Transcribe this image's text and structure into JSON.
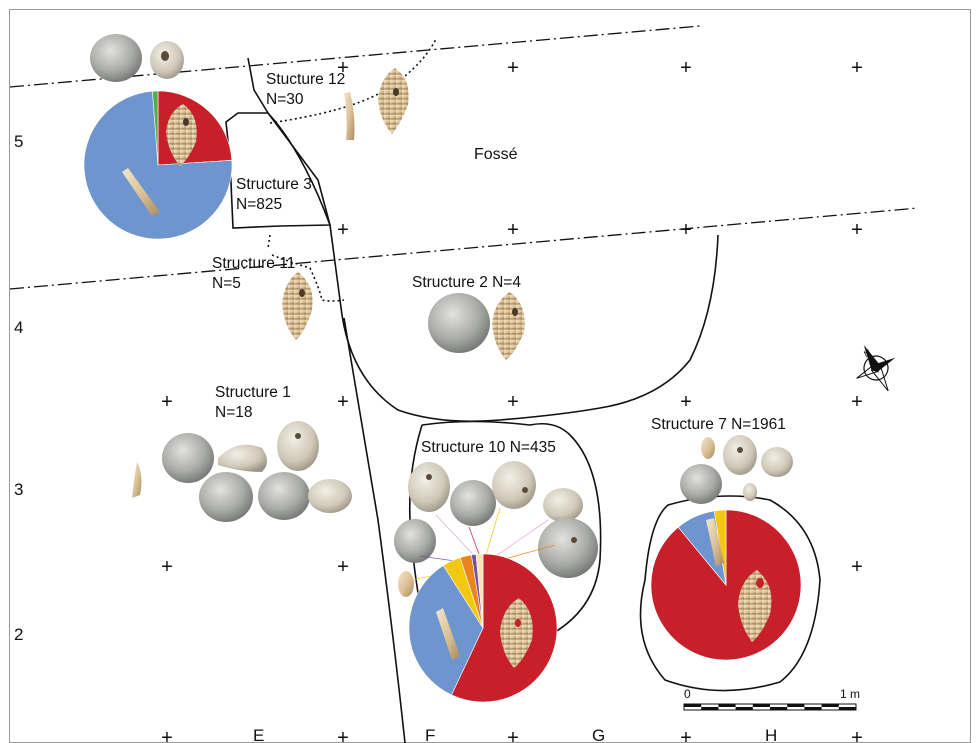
{
  "rows": [
    {
      "label": "5"
    },
    {
      "label": "4"
    },
    {
      "label": "3"
    },
    {
      "label": "2"
    }
  ],
  "columns": [
    {
      "label": "E"
    },
    {
      "label": "F"
    },
    {
      "label": "G"
    },
    {
      "label": "H"
    }
  ],
  "grid_marker": "+",
  "fosse_label": "Fossé",
  "structures": [
    {
      "id": "s12",
      "line1": "Stucture 12",
      "line2": "N=30"
    },
    {
      "id": "s3",
      "line1": "Structure 3",
      "line2": "N=825"
    },
    {
      "id": "s11",
      "line1": "Structure 11",
      "line2": "N=5"
    },
    {
      "id": "s2",
      "line1": "Structure 2 N=4",
      "line2": ""
    },
    {
      "id": "s1",
      "line1": "Structure 1",
      "line2": "N=18"
    },
    {
      "id": "s10",
      "line1": "Structure 10 N=435",
      "line2": ""
    },
    {
      "id": "s7",
      "line1": "Structure 7 N=1961",
      "line2": ""
    }
  ],
  "scale": {
    "start": "0",
    "end": "1 m"
  },
  "colors": {
    "red": "#c8202a",
    "blue": "#6f95cf",
    "yellow": "#f2c811",
    "orange": "#e8851f",
    "green": "#5aa84a",
    "purple": "#7b4fa0",
    "line": "#111111"
  },
  "pies": [
    {
      "id": "pie-structure-3",
      "slices": [
        {
          "name": "perforated-gastropod",
          "pct": 24.0,
          "color": "#c8202a"
        },
        {
          "name": "dentalium",
          "pct": 74.8,
          "color": "#6f95cf"
        },
        {
          "name": "other",
          "pct": 1.2,
          "color": "#5aa84a"
        }
      ]
    },
    {
      "id": "pie-structure-10",
      "slices": [
        {
          "name": "perforated-gastropod",
          "pct": 57.0,
          "color": "#c8202a"
        },
        {
          "name": "dentalium",
          "pct": 34.0,
          "color": "#6f95cf"
        },
        {
          "name": "yellow-category",
          "pct": 4.0,
          "color": "#f2c811"
        },
        {
          "name": "orange-category",
          "pct": 2.5,
          "color": "#e8851f"
        },
        {
          "name": "purple-category",
          "pct": 1.0,
          "color": "#7b4fa0"
        },
        {
          "name": "other",
          "pct": 1.5,
          "color": "#f3e6b0"
        }
      ]
    },
    {
      "id": "pie-structure-7",
      "slices": [
        {
          "name": "perforated-gastropod",
          "pct": 89.0,
          "color": "#c8202a"
        },
        {
          "name": "dentalium",
          "pct": 8.5,
          "color": "#6f95cf"
        },
        {
          "name": "yellow-category",
          "pct": 2.5,
          "color": "#f2c811"
        }
      ]
    }
  ],
  "icons": [
    {
      "name": "north-arrow-icon"
    },
    {
      "name": "scale-bar-icon"
    }
  ]
}
